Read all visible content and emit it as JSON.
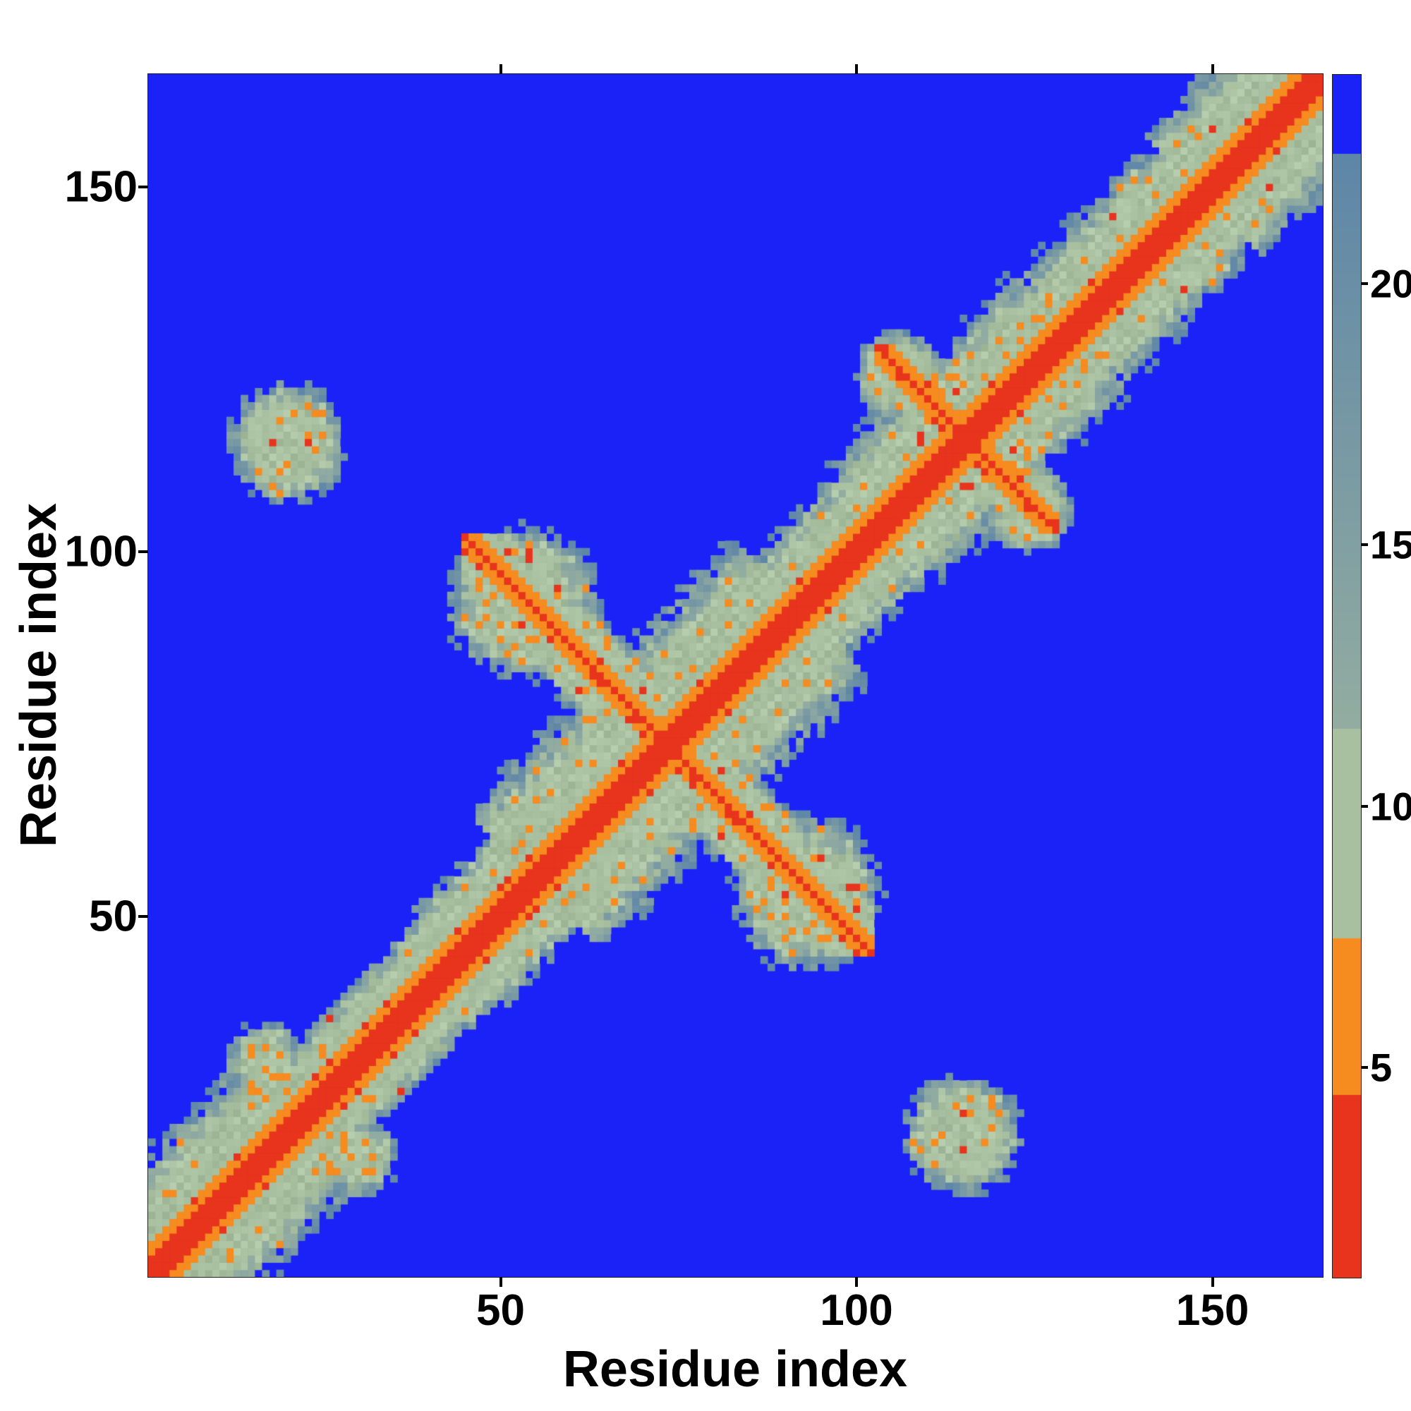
{
  "figure": {
    "kind": "protein-residue-distance-map"
  },
  "chart_data": {
    "type": "heatmap",
    "title": "",
    "xlabel": "Residue index",
    "ylabel": "Residue index",
    "x_ticks": [
      50,
      100,
      150
    ],
    "y_ticks": [
      50,
      100,
      150
    ],
    "n_residues": 165,
    "axis_range": [
      1,
      165
    ],
    "value_domain": [
      1,
      24
    ],
    "colorbar_ticks": [
      5,
      10,
      15,
      20
    ],
    "legend_position": "right-colorbar",
    "grid": false,
    "colormap": {
      "background": "#1b22f8",
      "red": {
        "max": 4.5,
        "color": "#e8341c"
      },
      "orange": {
        "max": 7.5,
        "color": "#f68b1f"
      },
      "sage": {
        "max": 11.5,
        "color": "#a9c0a0"
      },
      "slate": {
        "max": 22.5,
        "from": "#93ada1",
        "to": "#5e86a8"
      },
      "blue": {
        "color": "#1b22f8"
      }
    },
    "generator": {
      "inner_band": {
        "red_halfwidth": 2,
        "orange_halfwidth": 5,
        "inner_scale": 1.5
      },
      "width_profile": [
        {
          "from": 1,
          "to": 22,
          "scale": 0.5
        },
        {
          "from": 23,
          "to": 44,
          "scale": 0.95
        },
        {
          "from": 45,
          "to": 54,
          "scale": 0.75
        },
        {
          "from": 55,
          "to": 92,
          "scale": 0.42
        },
        {
          "from": 93,
          "to": 103,
          "scale": 0.7
        },
        {
          "from": 104,
          "to": 130,
          "scale": 0.55
        },
        {
          "from": 131,
          "to": 148,
          "scale": 0.6
        },
        {
          "from": 149,
          "to": 165,
          "scale": 0.5
        }
      ],
      "antidiagonal_contacts": [
        {
          "sum": 147,
          "from": 45,
          "to": 102,
          "base": 4.2,
          "scale": 1.1
        },
        {
          "sum": 231,
          "from": 103,
          "to": 128,
          "base": 4.4,
          "scale": 1.2
        }
      ],
      "blobs": [
        {
          "x": 20,
          "y": 115,
          "r": 6.5,
          "base": 8.6
        },
        {
          "x": 115,
          "y": 20,
          "r": 6.5,
          "base": 8.6
        },
        {
          "x": 30,
          "y": 17,
          "r": 4.5,
          "base": 9.0
        },
        {
          "x": 17,
          "y": 30,
          "r": 4.5,
          "base": 9.0
        },
        {
          "x": 53,
          "y": 93,
          "r": 8.5,
          "base": 8.8
        },
        {
          "x": 93,
          "y": 53,
          "r": 8.5,
          "base": 8.8
        },
        {
          "x": 106,
          "y": 124,
          "r": 5.0,
          "base": 8.8
        },
        {
          "x": 124,
          "y": 106,
          "r": 5.0,
          "base": 8.8
        }
      ],
      "speckle": {
        "sage_orange_per_mille": 80,
        "hot_orange_per_mille": 170,
        "hot_red_per_mille": 30,
        "orange_value": 6.2,
        "red_value": 3.9,
        "orange_zone_red_per_mille": 120
      }
    }
  }
}
